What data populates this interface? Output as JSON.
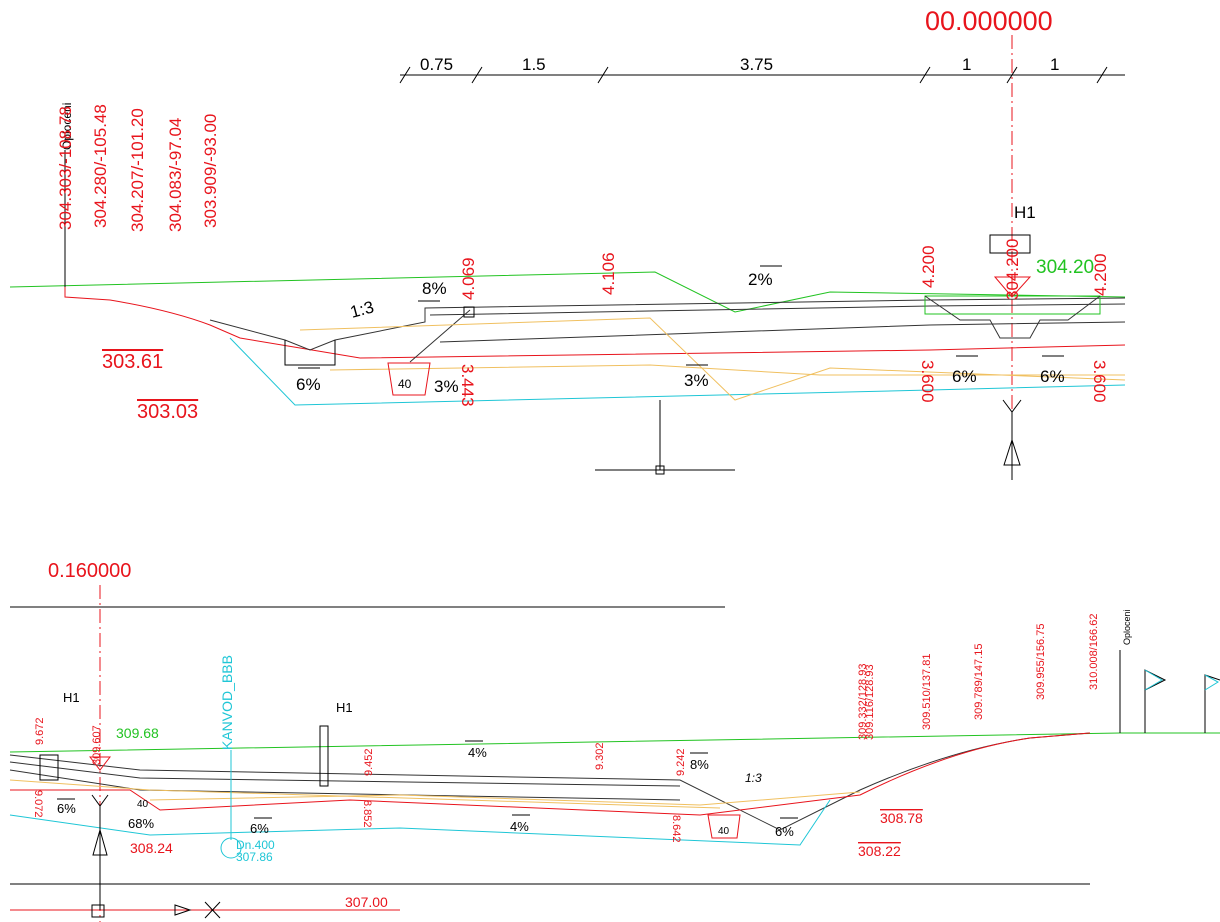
{
  "top": {
    "station": "00.000000",
    "dimensions": [
      "0.75",
      "1.5",
      "3.75",
      "1",
      "1"
    ],
    "fence": "Oploceni",
    "point_labels": [
      "304.303/-108.78",
      "304.280/-105.48",
      "304.207/-101.20",
      "304.083/-97.04",
      "303.909/-93.00"
    ],
    "axis_height": "304.200",
    "marker": "H1",
    "design_height": "304.20",
    "heights_upper": [
      "4.069",
      "4.106",
      "4.200",
      "4.200"
    ],
    "heights_lower": [
      "3.443",
      "3.600",
      "3.600"
    ],
    "slopes": [
      "8%",
      "1:3",
      "2%",
      "6%",
      "3%",
      "3%",
      "6%",
      "6%"
    ],
    "levels": [
      "303.61",
      "303.03"
    ],
    "pipe": "40"
  },
  "bottom": {
    "station": "0.160000",
    "markers": [
      "H1",
      "H1"
    ],
    "axis_height": "309.607",
    "design_height": "309.68",
    "utility": "KANVOD_BBB",
    "heights_upper": [
      "9.672",
      "9.452",
      "9.302",
      "9.242"
    ],
    "heights_lower": [
      "9.072",
      "8.852",
      "8.642"
    ],
    "point_labels": [
      "309.332/128.93",
      "309.116/128.93",
      "309.510/137.81",
      "309.789/147.15",
      "309.955/156.75",
      "310.008/166.62"
    ],
    "fence": "Oploceni",
    "slopes": [
      "4%",
      "8%",
      "1:3",
      "6%",
      "68%",
      "6%",
      "4%",
      "6%"
    ],
    "pipes": [
      "40",
      "40"
    ],
    "pipe_label": [
      "Dn.400",
      "307.86"
    ],
    "levels": [
      "308.24",
      "308.78",
      "308.22",
      "307.00"
    ]
  }
}
